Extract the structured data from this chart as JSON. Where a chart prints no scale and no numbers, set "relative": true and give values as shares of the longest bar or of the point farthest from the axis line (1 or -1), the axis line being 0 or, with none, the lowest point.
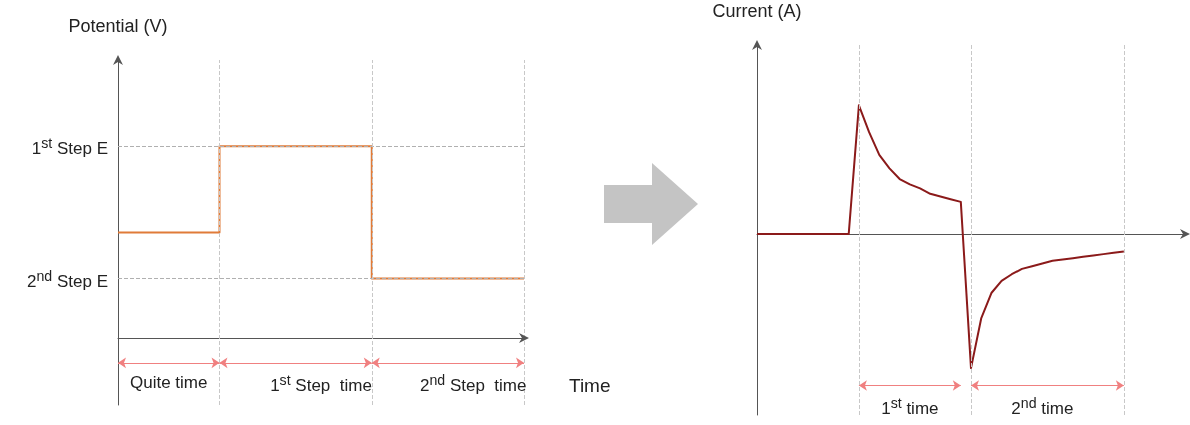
{
  "chart_data": [
    {
      "type": "step",
      "ylabel": "Potential (V)",
      "xlabel": "Time",
      "relative": true,
      "grid": "x",
      "categories": [
        null,
        null,
        null,
        null,
        null,
        null,
        null,
        null,
        null
      ],
      "series": [
        {
          "color": "#e07b39",
          "values": [
            0.55,
            0.55,
            1,
            1,
            1,
            0.31,
            0.31,
            0.31,
            0.31
          ]
        }
      ],
      "ref_lines": [
        {
          "axis": "y",
          "value": 1,
          "label": "1$^{st}$ Step E",
          "color": "#b0b0b0",
          "line_style": "dashed"
        },
        {
          "axis": "y",
          "value": 0.31,
          "label": "2$^{nd}$ Step E",
          "color": "#b0b0b0",
          "line_style": "dashed"
        }
      ],
      "annotations": [
        "Quite time",
        "1$^{st}$ Step  time",
        "2$^{nd}$ Step  time"
      ]
    },
    {
      "type": "line",
      "ylabel": "Current (A)",
      "relative": true,
      "grid": "x",
      "categories": [
        null,
        null,
        null,
        null,
        null,
        null,
        null,
        null,
        null,
        null,
        null,
        null,
        null,
        null,
        null,
        null,
        null,
        null,
        null,
        null,
        null,
        null,
        null,
        null,
        null,
        null,
        null,
        null,
        null,
        null,
        null,
        null,
        null,
        null,
        null,
        null,
        null,
        null,
        null,
        null,
        null,
        null,
        null
      ],
      "series": [
        {
          "color": "#8b1a1a",
          "values": [
            0,
            0,
            0,
            0,
            0,
            0,
            0,
            0,
            0,
            0,
            0.96,
            0.76,
            0.59,
            0.49,
            0.41,
            0.37,
            0.34,
            0.3,
            0.28,
            0.26,
            0.24,
            -1,
            -0.63,
            -0.44,
            -0.35,
            -0.3,
            -0.26,
            -0.24,
            -0.22,
            -0.2,
            -0.19,
            -0.18,
            -0.17,
            -0.16,
            -0.15,
            -0.14,
            -0.13,
            null,
            null,
            null,
            null,
            null,
            null
          ]
        }
      ],
      "annotations": [
        "1$^{st}$ time",
        "2$^{nd}$ time"
      ]
    }
  ]
}
